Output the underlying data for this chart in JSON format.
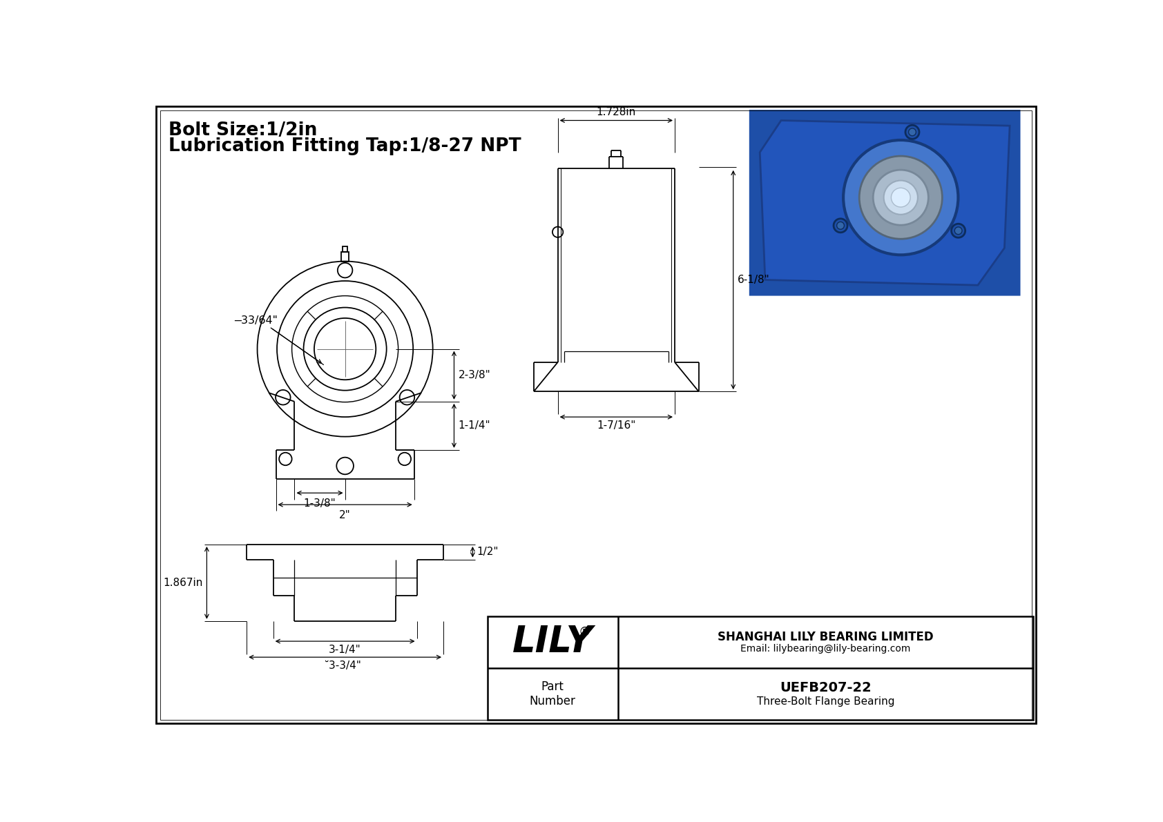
{
  "bg_color": "#ffffff",
  "line_color": "#000000",
  "title_line1": "Bolt Size:1/2in",
  "title_line2": "Lubrication Fitting Tap:1/8-27 NPT",
  "company": "SHANGHAI LILY BEARING LIMITED",
  "email": "Email: lilybearing@lily-bearing.com",
  "part_label": "Part\nNumber",
  "part_number": "UEFB207-22",
  "part_desc": "Three-Bolt Flange Bearing",
  "logo_text": "LILY",
  "dim_33_64": "̶33/64\"",
  "dim_2_3_8": "2-3/8\"",
  "dim_1_1_4": "1-1/4\"",
  "dim_1_3_8": "1-3/8\"",
  "dim_2": "2\"",
  "dim_1_728": "1.728in",
  "dim_6_1_8": "6-1/8\"",
  "dim_1_7_16": "1-7/16\"",
  "dim_half": "1/2\"",
  "dim_1_867": "1.867in",
  "dim_3_1_4": "3-1/4\"",
  "dim_3_3_4": "̆3-3/4\""
}
